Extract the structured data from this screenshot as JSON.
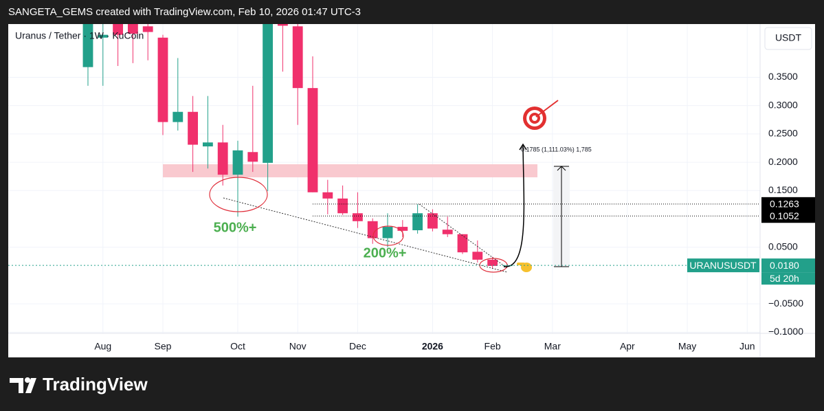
{
  "header": "SANGETA_GEMS created with TradingView.com, Feb 10, 2026 01:47 UTC-3",
  "brand": "TradingView",
  "chart_data": {
    "type": "candlestick",
    "title": "Uranus / Tether · 1W · KuCoin",
    "currency": "USDT",
    "categories": [
      null,
      null,
      null,
      null,
      null,
      null,
      null,
      null,
      null,
      null,
      null,
      null,
      null,
      null,
      null,
      null,
      null,
      null,
      null,
      null,
      null,
      null,
      null,
      null,
      null,
      null,
      null,
      null,
      null
    ],
    "open": [
      0.368,
      0.42,
      0.45,
      0.445,
      0.44,
      0.42,
      0.271,
      0.289,
      0.228,
      0.235,
      0.178,
      0.218,
      0.199,
      0.445,
      0.44,
      0.331,
      0.147,
      0.136,
      0.11,
      0.096,
      0.066,
      0.086,
      0.08,
      0.11,
      0.081,
      0.073,
      0.042,
      0.028,
      0.017
    ],
    "high": [
      0.47,
      0.46,
      0.46,
      0.455,
      0.45,
      0.425,
      0.384,
      0.317,
      0.317,
      0.266,
      0.238,
      0.335,
      0.46,
      0.45,
      0.445,
      0.387,
      0.169,
      0.159,
      0.147,
      0.101,
      0.11,
      0.098,
      0.126,
      0.117,
      0.104,
      0.073,
      0.062,
      0.033,
      0.02
    ],
    "low": [
      0.335,
      0.335,
      0.37,
      0.375,
      0.38,
      0.248,
      0.256,
      0.183,
      0.189,
      0.159,
      0.104,
      0.183,
      0.149,
      0.36,
      0.266,
      0.147,
      0.108,
      0.107,
      0.084,
      0.056,
      0.05,
      0.068,
      0.074,
      0.078,
      0.068,
      0.038,
      0.023,
      0.012,
      0.016
    ],
    "close": [
      0.45,
      0.425,
      0.425,
      0.427,
      0.43,
      0.271,
      0.289,
      0.231,
      0.235,
      0.178,
      0.221,
      0.201,
      0.45,
      0.441,
      0.331,
      0.147,
      0.136,
      0.11,
      0.096,
      0.066,
      0.086,
      0.079,
      0.11,
      0.083,
      0.073,
      0.041,
      0.028,
      0.017,
      0.018
    ],
    "up_color": "#22a08a",
    "down_color": "#f0306c",
    "xlim": [
      -5.32,
      44.86
    ],
    "ylim": [
      -0.102,
      0.444
    ],
    "xticks": [
      {
        "value": 1,
        "label": "Aug"
      },
      {
        "value": 5,
        "label": "Sep"
      },
      {
        "value": 10,
        "label": "Oct"
      },
      {
        "value": 14,
        "label": "Nov"
      },
      {
        "value": 18,
        "label": "Dec"
      },
      {
        "value": 23,
        "label": "2026",
        "bold": true
      },
      {
        "value": 27,
        "label": "Feb"
      },
      {
        "value": 31,
        "label": "Mar"
      },
      {
        "value": 36,
        "label": "Apr"
      },
      {
        "value": 40,
        "label": "May"
      },
      {
        "value": 44,
        "label": "Jun"
      }
    ],
    "yticks": [
      {
        "value": 0.35,
        "label": "0.3500"
      },
      {
        "value": 0.3,
        "label": "0.3000"
      },
      {
        "value": 0.25,
        "label": "0.2500"
      },
      {
        "value": 0.2,
        "label": "0.2000"
      },
      {
        "value": 0.15,
        "label": "0.1500"
      },
      {
        "value": 0.05,
        "label": "0.0500"
      },
      {
        "value": -0.05,
        "label": "−0.0500"
      },
      {
        "value": -0.1,
        "label": "−0.1000"
      }
    ],
    "grid": true,
    "price_lines": [
      {
        "value": 0.1263,
        "color": "#000000"
      },
      {
        "value": 0.1052,
        "color": "#000000"
      },
      {
        "value": 0.018,
        "label": "0.0180",
        "name": "URANUSUSDT",
        "countdown": "5d 20h",
        "color": "#22a08a"
      }
    ],
    "annotations": [
      "500%+",
      "200%+",
      "0.1785 (1,111.03%) 1,785"
    ]
  }
}
